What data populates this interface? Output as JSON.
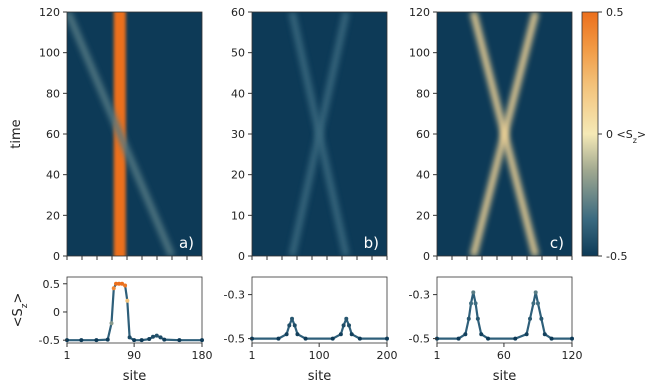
{
  "chart_data": [
    {
      "type": "heatmap",
      "panel_label": "a)",
      "ylabel": "time",
      "ylim": [
        0,
        120
      ],
      "yticks": [
        "0",
        "20",
        "40",
        "60",
        "80",
        "100",
        "120"
      ],
      "site_range": [
        1,
        180
      ],
      "features": [
        {
          "kind": "domain",
          "site_start": 63,
          "site_end": 79,
          "value": 0.5
        },
        {
          "kind": "moving_peak",
          "site_at_t0": 140,
          "site_at_tmax": 2,
          "value": -0.3
        }
      ]
    },
    {
      "type": "heatmap",
      "panel_label": "b)",
      "ylim": [
        0,
        60
      ],
      "yticks": [
        "0",
        "10",
        "20",
        "30",
        "40",
        "50",
        "60"
      ],
      "site_range": [
        1,
        200
      ],
      "features": [
        {
          "kind": "moving_peak",
          "site_at_t0": 60,
          "site_at_tmax": 140,
          "value": -0.35
        },
        {
          "kind": "moving_peak",
          "site_at_t0": 140,
          "site_at_tmax": 60,
          "value": -0.35
        }
      ]
    },
    {
      "type": "heatmap",
      "panel_label": "c)",
      "ylim": [
        0,
        120
      ],
      "yticks": [
        "0",
        "20",
        "40",
        "60",
        "80",
        "100",
        "120"
      ],
      "site_range": [
        1,
        120
      ],
      "features": [
        {
          "kind": "moving_peak",
          "site_at_t0": 33,
          "site_at_tmax": 88,
          "value": 0.1
        },
        {
          "kind": "moving_peak",
          "site_at_t0": 88,
          "site_at_tmax": 33,
          "value": 0.1
        }
      ]
    },
    {
      "type": "line",
      "panel": "a",
      "xlabel": "site",
      "ylabel": "<Sz>",
      "xlim": [
        1,
        180
      ],
      "xticks": [
        "1",
        "90",
        "180"
      ],
      "ylim": [
        -0.55,
        0.62
      ],
      "yticks": [
        "0.5",
        "0",
        "-0.5"
      ],
      "x": [
        1,
        20,
        40,
        55,
        60,
        63,
        66,
        70,
        74,
        78,
        81,
        84,
        90,
        100,
        110,
        115,
        120,
        125,
        130,
        150,
        180
      ],
      "y": [
        -0.5,
        -0.5,
        -0.5,
        -0.49,
        -0.2,
        0.42,
        0.5,
        0.5,
        0.5,
        0.47,
        0.2,
        -0.45,
        -0.5,
        -0.5,
        -0.48,
        -0.44,
        -0.42,
        -0.45,
        -0.49,
        -0.5,
        -0.5
      ]
    },
    {
      "type": "line",
      "panel": "b",
      "xlabel": "site",
      "ylim": [
        -0.52,
        -0.22
      ],
      "yticks": [
        "-0.3",
        "-0.5"
      ],
      "xlim": [
        1,
        200
      ],
      "xticks": [
        "1",
        "100",
        "200"
      ],
      "x": [
        1,
        40,
        52,
        56,
        60,
        64,
        68,
        80,
        120,
        132,
        136,
        140,
        144,
        148,
        160,
        200
      ],
      "y": [
        -0.5,
        -0.5,
        -0.48,
        -0.44,
        -0.41,
        -0.44,
        -0.48,
        -0.5,
        -0.5,
        -0.48,
        -0.44,
        -0.41,
        -0.44,
        -0.48,
        -0.5,
        -0.5
      ]
    },
    {
      "type": "line",
      "panel": "c",
      "xlabel": "site",
      "ylim": [
        -0.52,
        -0.22
      ],
      "yticks": [
        "-0.3",
        "-0.5"
      ],
      "xlim": [
        1,
        120
      ],
      "xticks": [
        "1",
        "60",
        "120"
      ],
      "x": [
        1,
        20,
        26,
        29,
        31,
        33,
        35,
        37,
        40,
        46,
        70,
        80,
        83,
        86,
        88,
        90,
        93,
        96,
        102,
        120
      ],
      "y": [
        -0.5,
        -0.5,
        -0.48,
        -0.41,
        -0.34,
        -0.29,
        -0.34,
        -0.41,
        -0.48,
        -0.5,
        -0.5,
        -0.48,
        -0.41,
        -0.34,
        -0.29,
        -0.34,
        -0.41,
        -0.48,
        -0.5,
        -0.5
      ]
    },
    {
      "type": "colorbar",
      "ticks": [
        "0.5",
        "0 <Sz>",
        "-0.5"
      ],
      "range": [
        -0.5,
        0.5
      ]
    }
  ]
}
